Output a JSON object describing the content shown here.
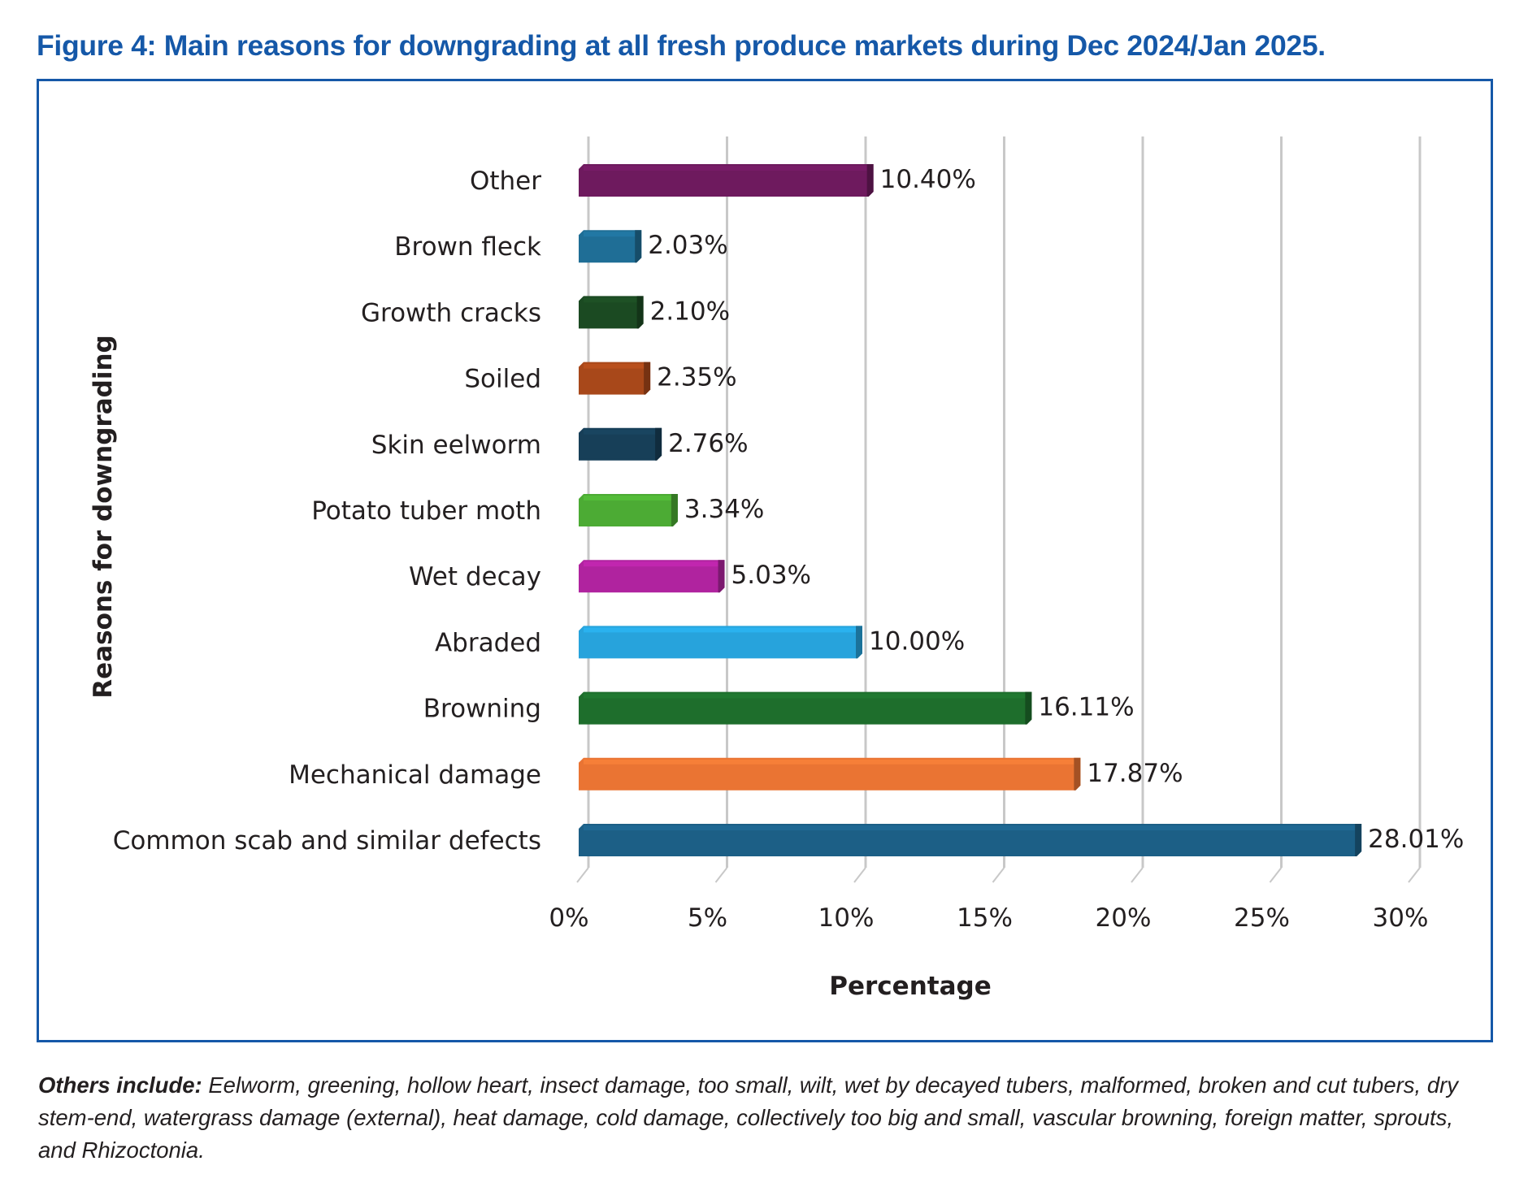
{
  "figure": {
    "title": "Figure 4: Main reasons for downgrading at all fresh produce markets during Dec 2024/Jan 2025.",
    "frame_color": "#1558a8"
  },
  "footnote": {
    "lead": "Others include:",
    "text": " Eelworm, greening, hollow heart, insect damage, too small, wilt, wet by decayed tubers, malformed, broken and cut tubers, dry stem-end, watergrass damage (external), heat damage, cold damage, collectively too big and small, vascular browning, foreign matter, sprouts, and Rhizoctonia."
  },
  "chart_data": {
    "type": "bar",
    "orientation": "horizontal",
    "title": "Figure 4: Main reasons for downgrading at all fresh produce markets during Dec 2024/Jan 2025.",
    "xlabel": "Percentage",
    "ylabel": "Reasons for downgrading",
    "xlim": [
      0,
      30
    ],
    "x_ticks": [
      0,
      5,
      10,
      15,
      20,
      25,
      30
    ],
    "x_tick_labels": [
      "0%",
      "5%",
      "10%",
      "15%",
      "20%",
      "25%",
      "30%"
    ],
    "grid": "vertical",
    "legend": "none",
    "categories": [
      "Other",
      "Brown fleck",
      "Growth cracks",
      "Soiled",
      "Skin eelworm",
      "Potato tuber moth",
      "Wet decay",
      "Abraded",
      "Browning",
      "Mechanical damage",
      "Common scab and similar defects"
    ],
    "values": [
      10.4,
      2.03,
      2.1,
      2.35,
      2.76,
      3.34,
      5.03,
      10.0,
      16.11,
      17.87,
      28.01
    ],
    "value_labels": [
      "10.40%",
      "2.03%",
      "2.10%",
      "2.35%",
      "2.76%",
      "3.34%",
      "5.03%",
      "10.00%",
      "16.11%",
      "17.87%",
      "28.01%"
    ],
    "colors": [
      "#6e1a5e",
      "#1f6e96",
      "#1b4a22",
      "#a8481a",
      "#173f58",
      "#4cab34",
      "#b0239f",
      "#27a3dc",
      "#1e6e2c",
      "#ea7433",
      "#1c5f86"
    ]
  }
}
